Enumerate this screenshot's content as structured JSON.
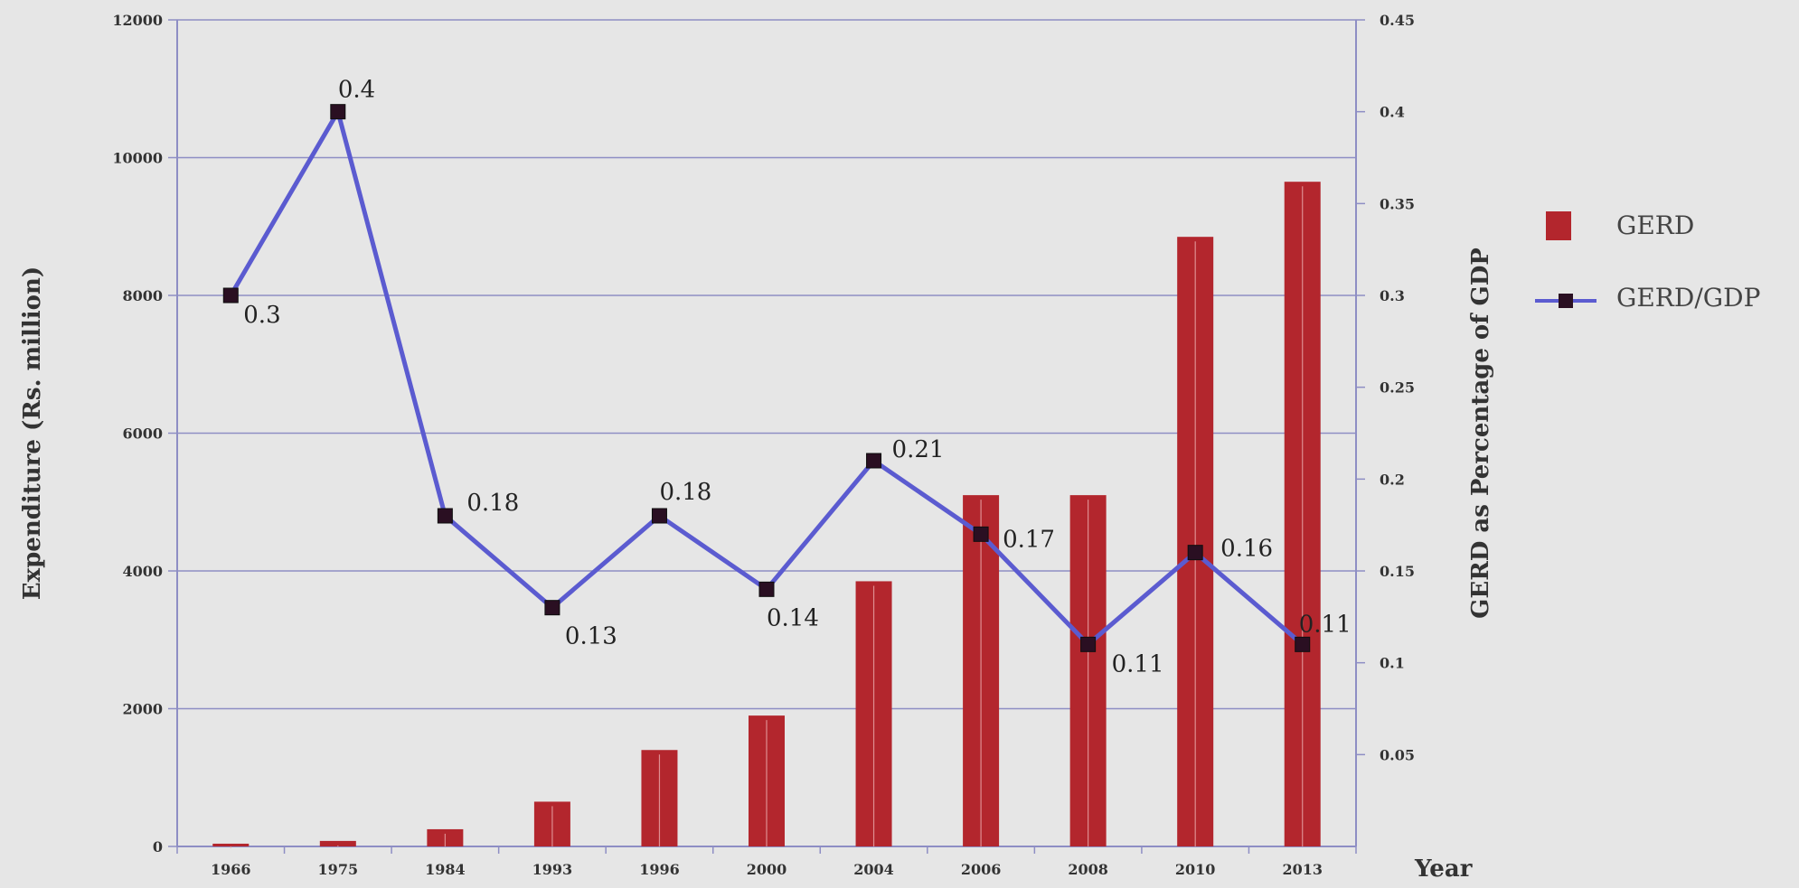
{
  "chart_data": {
    "type": "bar",
    "title": "",
    "xlabel": "Year",
    "ylabel_left": "Expenditure (Rs. million)",
    "ylabel_right": "GERD as Percentage of GDP",
    "categories": [
      "1966",
      "1975",
      "1984",
      "1993",
      "1996",
      "2000",
      "2004",
      "2006",
      "2008",
      "2010",
      "2013"
    ],
    "ylim_left": [
      0,
      12000
    ],
    "yticks_left": [
      "0",
      "2000",
      "4000",
      "6000",
      "8000",
      "10000",
      "12000"
    ],
    "ylim_right": [
      0,
      0.45
    ],
    "yticks_right": [
      "0.05",
      "0.1",
      "0.15",
      "0.2",
      "0.25",
      "0.3",
      "0.35",
      "0.4",
      "0.45"
    ],
    "series": [
      {
        "name": "GERD",
        "kind": "bar",
        "axis": "left",
        "color": "#b3262d",
        "values": [
          40,
          80,
          250,
          650,
          1400,
          1900,
          3850,
          5100,
          5100,
          8850,
          9650
        ]
      },
      {
        "name": "GERD/GDP",
        "kind": "line",
        "axis": "right",
        "color": "#5b5bd0",
        "marker_color": "#2a0f22",
        "values": [
          0.3,
          0.4,
          0.18,
          0.13,
          0.18,
          0.14,
          0.21,
          0.17,
          0.11,
          0.16,
          0.11
        ],
        "labels": [
          "0.3",
          "0.4",
          "0.18",
          "0.13",
          "0.18",
          "0.14",
          "0.21",
          "0.17",
          "0.11",
          "0.16",
          "0.11"
        ]
      }
    ],
    "grid": "horizontal",
    "legend_position": "right"
  }
}
